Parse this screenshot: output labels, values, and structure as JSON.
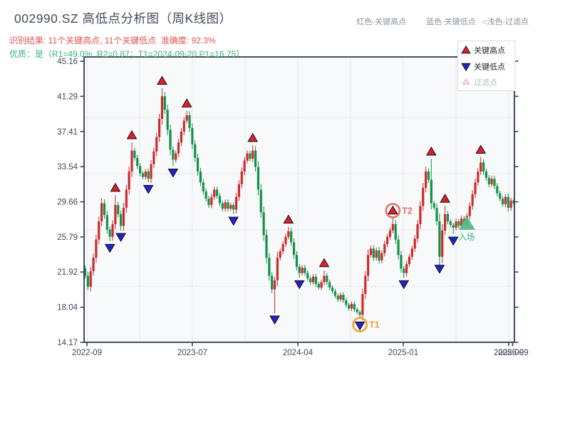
{
  "header": {
    "title": "002990.SZ 高低点分析图（周K线图）",
    "result_line": "识别结果: 11个关键高点, 11个关键低点  准确度: 92.3%",
    "quality_line": "优质：是（R1=49.0%  R2=0.87；T1=2024-09-20 P1=16.75）",
    "note_high": "红色-关键高点",
    "note_low": "蓝色-关键低点",
    "note_filtered": "○浅色-过滤点"
  },
  "legend": {
    "items": [
      {
        "type": "key-high",
        "label": "关键高点"
      },
      {
        "type": "key-low",
        "label": "关键低点"
      },
      {
        "type": "filtered",
        "label": "过滤点"
      }
    ]
  },
  "colors": {
    "up_candle": "#cc2b2b",
    "down_candle": "#149148",
    "key_high_marker": "#e11d2e",
    "key_low_marker": "#2222cc",
    "marker_edge": "#111111",
    "entry_marker": "#58b888",
    "t1_ring": "#f0a330",
    "t2_ring": "#e05b50",
    "t1_text": "#f0a330",
    "t2_text": "#e8736b",
    "entry_text": "#35b378",
    "axis": "#2f3e50",
    "tick_label": "#3c4a5c",
    "grid": "#e4e8eb",
    "plot_bg": "#f7f9fb",
    "legend_text": "#24292e",
    "legend_muted": "#b6bcc2",
    "filtered_fill": "#fdeeee",
    "filtered_edge": "#e6a1a1"
  },
  "chart_data": {
    "type": "candlestick",
    "title": "002990.SZ 高低点分析图（周K线图）",
    "timeframe": "weekly",
    "x_tick_labels": [
      "2022-09",
      "2023-07",
      "2024-04",
      "2025-01",
      "2025-09"
    ],
    "x_tick_label_overlap": "2025-09",
    "y_ticks": [
      45.16,
      41.29,
      37.41,
      33.54,
      29.66,
      25.79,
      21.92,
      18.04,
      14.17
    ],
    "ylim": [
      14.17,
      45.16
    ],
    "first_open": 22.3,
    "closes": [
      21.5,
      20.3,
      22.0,
      23.5,
      25.5,
      27.5,
      29.5,
      28.2,
      26.6,
      25.8,
      27.2,
      29.3,
      28.3,
      27.0,
      29.0,
      31.0,
      33.0,
      35.3,
      34.5,
      33.6,
      32.8,
      32.4,
      33.0,
      32.2,
      33.8,
      35.2,
      36.8,
      38.8,
      41.3,
      39.8,
      37.6,
      35.4,
      34.3,
      35.0,
      36.2,
      37.4,
      38.6,
      39.2,
      37.8,
      36.0,
      34.5,
      33.0,
      31.8,
      30.8,
      30.0,
      29.3,
      30.2,
      31.0,
      30.3,
      29.5,
      28.9,
      29.6,
      28.9,
      29.3,
      28.8,
      30.2,
      31.6,
      33.0,
      34.2,
      35.0,
      34.4,
      35.3,
      33.5,
      31.0,
      28.5,
      26.0,
      23.5,
      21.5,
      20.0,
      21.0,
      23.5,
      24.2,
      25.0,
      25.8,
      26.4,
      25.2,
      23.8,
      22.5,
      21.8,
      22.4,
      21.8,
      21.2,
      20.8,
      21.4,
      20.6,
      20.2,
      20.8,
      21.5,
      20.8,
      20.2,
      19.8,
      19.3,
      18.9,
      19.4,
      18.8,
      18.3,
      17.9,
      18.4,
      17.8,
      17.5,
      17.2,
      19.5,
      21.5,
      23.8,
      24.5,
      23.5,
      24.3,
      23.2,
      24.0,
      25.0,
      25.8,
      26.5,
      27.2,
      25.5,
      23.8,
      22.3,
      21.8,
      22.8,
      23.6,
      24.5,
      25.6,
      27.2,
      29.2,
      31.2,
      33.0,
      32.1,
      29.5,
      29.0,
      27.5,
      23.6,
      26.5,
      28.3,
      27.5,
      27.1,
      26.8,
      27.5,
      27.0,
      27.8,
      27.3,
      28.1,
      29.2,
      30.5,
      31.8,
      33.0,
      34.0,
      33.0,
      32.3,
      31.6,
      32.2,
      31.4,
      30.6,
      30.0,
      29.4,
      30.2,
      29.0,
      29.8,
      29.5
    ],
    "key_highs": [
      [
        11,
        30.4
      ],
      [
        17,
        36.2
      ],
      [
        28,
        42.2
      ],
      [
        37,
        39.7
      ],
      [
        61,
        35.9
      ],
      [
        74,
        26.9
      ],
      [
        87,
        22.1
      ],
      [
        112,
        27.9
      ],
      [
        126,
        34.4
      ],
      [
        131,
        29.2
      ],
      [
        144,
        34.6
      ]
    ],
    "key_lows": [
      [
        9,
        25.3
      ],
      [
        13,
        26.5
      ],
      [
        23,
        31.8
      ],
      [
        32,
        33.6
      ],
      [
        54,
        28.3
      ],
      [
        69,
        17.4
      ],
      [
        78,
        21.3
      ],
      [
        100,
        16.75
      ],
      [
        116,
        21.3
      ],
      [
        129,
        23.0
      ],
      [
        134,
        26.1
      ]
    ],
    "annotations": {
      "t1": {
        "label": "T1",
        "index": 100,
        "price": 16.75
      },
      "t2": {
        "label": "T2",
        "index": 112,
        "price": 27.9
      },
      "entry": {
        "label": "入场",
        "index": 139,
        "price": 27.2
      }
    }
  }
}
